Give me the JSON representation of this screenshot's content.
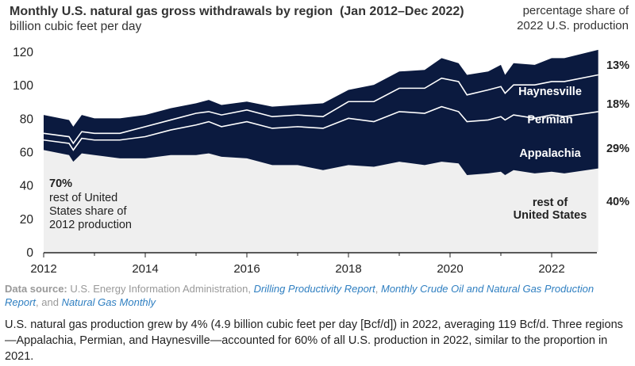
{
  "chart_data": {
    "type": "area",
    "stacked": true,
    "title": "Monthly U.S. natural gas gross withdrawals by region  (Jan 2012–Dec 2022)",
    "subtitle": "billion cubic feet per day",
    "share_header": "percentage share of 2022 U.S. production",
    "ylim": [
      0,
      120
    ],
    "yticks": [
      "0",
      "20",
      "40",
      "60",
      "80",
      "100",
      "120"
    ],
    "xticks": [
      "2012",
      "2014",
      "2016",
      "2018",
      "2020",
      "2022"
    ],
    "grid": false,
    "x": [
      "2012-01",
      "2012-07",
      "2012-08",
      "2012-10",
      "2013-01",
      "2013-07",
      "2014-01",
      "2014-07",
      "2015-01",
      "2015-04",
      "2015-07",
      "2016-01",
      "2016-07",
      "2017-01",
      "2017-07",
      "2018-01",
      "2018-07",
      "2019-01",
      "2019-07",
      "2019-11",
      "2020-03",
      "2020-05",
      "2020-10",
      "2021-01",
      "2021-02",
      "2021-04",
      "2021-09",
      "2022-01",
      "2022-04",
      "2022-12"
    ],
    "series": [
      {
        "name": "rest of United States",
        "share_2022": "40%",
        "color": "#efefef",
        "values": [
          61,
          58,
          54,
          59,
          58,
          56,
          56,
          58,
          58,
          59,
          57,
          56,
          52,
          52,
          49,
          52,
          51,
          54,
          52,
          54,
          53,
          46,
          47,
          48,
          46,
          49,
          47,
          48,
          47,
          50
        ]
      },
      {
        "name": "Appalachia",
        "share_2022": "29%",
        "color": "#0b1a3f",
        "values": [
          6,
          7,
          7,
          9,
          9,
          11,
          13,
          15,
          18,
          19,
          18,
          22,
          22,
          23,
          25,
          28,
          27,
          30,
          31,
          33,
          31,
          32,
          32,
          33,
          33,
          33,
          33,
          34,
          34,
          34
        ]
      },
      {
        "name": "Permian",
        "share_2022": "18%",
        "color": "#0b1a3f",
        "values": [
          4,
          4,
          4,
          4,
          4,
          4,
          6,
          6,
          7,
          6,
          7,
          7,
          7,
          7,
          7,
          10,
          12,
          14,
          15,
          17,
          18,
          16,
          18,
          18,
          16,
          18,
          20,
          20,
          21,
          22
        ]
      },
      {
        "name": "Haynesville",
        "share_2022": "13%",
        "color": "#0b1a3f",
        "values": [
          11,
          10,
          10,
          10,
          9,
          9,
          7,
          7,
          6,
          7,
          6,
          5,
          6,
          6,
          8,
          7,
          10,
          10,
          11,
          12,
          11,
          12,
          11,
          13,
          11,
          13,
          12,
          14,
          14,
          15
        ]
      }
    ],
    "annotation": {
      "pct": "70%",
      "line1": "rest of United",
      "line2": "States share of",
      "line3": "2012 production"
    },
    "rest_label": {
      "line1": "rest of",
      "line2": "United States"
    }
  },
  "source": {
    "label": "Data source:",
    "text1": " U.S. Energy Information Administration, ",
    "link1": "Drilling Productivity Report",
    "sep1": ", ",
    "link2": "Monthly Crude Oil and Natural Gas Production Report",
    "sep2": ", and ",
    "link3": "Natural Gas Monthly"
  },
  "caption": "U.S. natural gas production grew by 4% (4.9 billion cubic feet per day [Bcf/d]) in 2022, averaging 119 Bcf/d. Three regions—Appalachia, Permian, and Haynesville—accounted for 60% of all U.S. production in 2022, similar to the proportion in 2021."
}
